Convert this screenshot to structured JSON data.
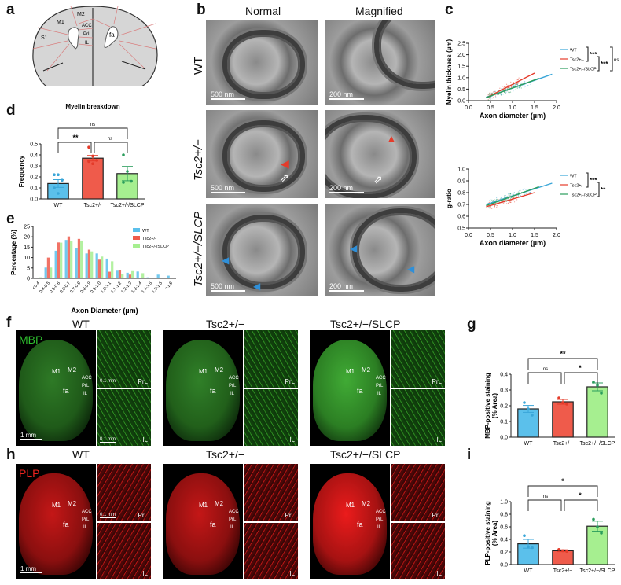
{
  "panel_labels": {
    "a": "a",
    "b": "b",
    "c": "c",
    "d": "d",
    "e": "e",
    "f": "f",
    "g": "g",
    "h": "h",
    "i": "i"
  },
  "panel_a": {
    "regions": [
      "M1",
      "M2",
      "ACC",
      "PrL",
      "IL",
      "S1",
      "fa"
    ]
  },
  "panel_b": {
    "columns": [
      "Normal",
      "Magnified"
    ],
    "rows": [
      "WT",
      "Tsc2+/−",
      "Tsc2+/−/SLCP"
    ],
    "scale_bars": [
      [
        "500 nm",
        "200 nm"
      ],
      [
        "500 nm",
        "200 nm"
      ],
      [
        "500 nm",
        "200 nm"
      ]
    ],
    "arrow_colors": {
      "red": "#e53b2a",
      "blue": "#2f8fd8"
    }
  },
  "groups": [
    "WT",
    "Tsc2+/−",
    "Tsc2+/−/SLCP"
  ],
  "colors": {
    "wt": "#5bc0eb",
    "tsc2": "#ef5b4b",
    "slcp": "#a6ef90",
    "wt_line": "#3aa6d8",
    "tsc2_line": "#e53b2a",
    "slcp_line": "#2a9d5c"
  },
  "panel_f": {
    "stain": "MBP",
    "stain_color": "#2fbf2f",
    "brain_scale": "1 mm",
    "inset_scale": "0.1 mm",
    "inset_labels": [
      "PrL",
      "IL"
    ],
    "regions": [
      "M1",
      "M2",
      "ACC",
      "PrL",
      "IL",
      "fa"
    ]
  },
  "panel_h": {
    "stain": "PLP",
    "stain_color": "#e8231e",
    "brain_scale": "1 mm",
    "inset_scale": "0.1 mm",
    "inset_labels": [
      "PrL",
      "IL"
    ],
    "regions": [
      "M1",
      "M2",
      "ACC",
      "PrL",
      "IL",
      "fa"
    ]
  },
  "chart_data": [
    {
      "id": "c1",
      "type": "line",
      "xlabel": "Axon diameter (µm)",
      "ylabel": "Myelin thickness (µm)",
      "xlim": [
        0,
        2
      ],
      "ylim": [
        0,
        2.5
      ],
      "xticks": [
        "0.0",
        "0.5",
        "1.0",
        "1.5",
        "2.0"
      ],
      "yticks": [
        "0.0",
        "0.5",
        "1.0",
        "1.5",
        "2.0",
        "2.5"
      ],
      "series": [
        {
          "name": "WT",
          "x": [
            0.4,
            1.9
          ],
          "y": [
            0.15,
            1.15
          ]
        },
        {
          "name": "Tsc2+/-",
          "x": [
            0.4,
            1.5
          ],
          "y": [
            0.12,
            1.2
          ]
        },
        {
          "name": "Tsc2+/-/SLCP",
          "x": [
            0.4,
            1.6
          ],
          "y": [
            0.13,
            0.97
          ]
        }
      ],
      "comparisons": [
        {
          "from": 0,
          "to": 1,
          "label": "***"
        },
        {
          "from": 1,
          "to": 2,
          "label": "***"
        },
        {
          "from": 0,
          "to": 2,
          "label": "ns"
        }
      ]
    },
    {
      "id": "c2",
      "type": "line",
      "xlabel": "Axon diameter (µm)",
      "ylabel": "g-ratio",
      "xlim": [
        0,
        2
      ],
      "ylim": [
        0.5,
        1.0
      ],
      "xticks": [
        "0.0",
        "0.5",
        "1.0",
        "1.5",
        "2.0"
      ],
      "yticks": [
        "0.5",
        "0.6",
        "0.7",
        "0.8",
        "0.9",
        "1.0"
      ],
      "series": [
        {
          "name": "WT",
          "x": [
            0.4,
            1.9
          ],
          "y": [
            0.7,
            0.88
          ]
        },
        {
          "name": "Tsc2+/-",
          "x": [
            0.4,
            1.5
          ],
          "y": [
            0.68,
            0.8
          ]
        },
        {
          "name": "Tsc2+/-/SLCP",
          "x": [
            0.4,
            1.6
          ],
          "y": [
            0.69,
            0.85
          ]
        }
      ],
      "comparisons": [
        {
          "from": 0,
          "to": 1,
          "label": "***"
        },
        {
          "from": 1,
          "to": 2,
          "label": "**"
        }
      ]
    },
    {
      "id": "d",
      "type": "bar",
      "title": "Myelin breakdown",
      "ylabel": "Frequency",
      "ylim": [
        0,
        0.5
      ],
      "yticks": [
        "0.0",
        "0.1",
        "0.2",
        "0.3",
        "0.4",
        "0.5"
      ],
      "categories": [
        "WT",
        "Tsc2+/-",
        "Tsc2+/-/SLCP"
      ],
      "values": [
        0.14,
        0.37,
        0.23
      ],
      "errors": [
        0.035,
        0.025,
        0.065
      ],
      "points": [
        [
          0.22,
          0.22,
          0.17,
          0.1,
          0.05
        ],
        [
          0.47,
          0.39,
          0.35,
          0.34,
          0.32
        ],
        [
          0.4,
          0.25,
          0.16,
          0.15
        ]
      ],
      "comparisons": [
        {
          "from": 0,
          "to": 1,
          "label": "**",
          "level": 1
        },
        {
          "from": 1,
          "to": 2,
          "label": "ns",
          "level": 1
        },
        {
          "from": 0,
          "to": 2,
          "label": "ns",
          "level": 2
        }
      ]
    },
    {
      "id": "e",
      "type": "bar",
      "xlabel": "Axon Diameter (µm)",
      "ylabel": "Percentage (%)",
      "ylim": [
        0,
        25
      ],
      "yticks": [
        "0",
        "5",
        "10",
        "15",
        "20",
        "25"
      ],
      "categories": [
        "<0.4",
        "0.4-0.5",
        "0.5-0.6",
        "0.6-0.7",
        "0.7-0.8",
        "0.8-0.9",
        "0.9-1.0",
        "1.0-1.1",
        "1.1-1.2",
        "1.2-1.3",
        "1.3-1.4",
        "1.4-1.5",
        "1.5-1.6",
        ">1.6"
      ],
      "legend": "top-right",
      "series": [
        {
          "name": "WT",
          "values": [
            0,
            5.2,
            13.3,
            18.5,
            14.5,
            12,
            12,
            9.5,
            3.7,
            2.7,
            3.3,
            0.5,
            1.8,
            1.3
          ]
        },
        {
          "name": "Tsc2+/-",
          "values": [
            0,
            10,
            17.3,
            20.2,
            19,
            13.8,
            9,
            3.2,
            4,
            1.8,
            0,
            0,
            0,
            0
          ]
        },
        {
          "name": "Tsc2+/-/SLCP",
          "values": [
            0.5,
            5.2,
            17.2,
            17.8,
            18.2,
            13,
            10.5,
            8.2,
            2.2,
            3.5,
            2.5,
            0,
            0,
            0.3
          ]
        }
      ]
    },
    {
      "id": "g",
      "type": "bar",
      "ylabel": "MBP-positive staining\n(% Area)",
      "ylim": [
        0,
        0.4
      ],
      "yticks": [
        "0.0",
        "0.1",
        "0.2",
        "0.3",
        "0.4"
      ],
      "categories": [
        "WT",
        "Tsc2+/−",
        "Tsc2+/−/SLCP"
      ],
      "values": [
        0.18,
        0.225,
        0.32
      ],
      "errors": [
        0.022,
        0.015,
        0.025
      ],
      "points": [
        [
          0.22,
          0.18,
          0.14
        ],
        [
          0.25,
          0.22,
          0.21
        ],
        [
          0.35,
          0.33,
          0.28
        ]
      ],
      "comparisons": [
        {
          "from": 0,
          "to": 1,
          "label": "ns",
          "level": 1
        },
        {
          "from": 1,
          "to": 2,
          "label": "*",
          "level": 1
        },
        {
          "from": 0,
          "to": 2,
          "label": "**",
          "level": 2
        }
      ]
    },
    {
      "id": "i",
      "type": "bar",
      "ylabel": "PLP-positive staining\n(% Area)",
      "ylim": [
        0,
        1.0
      ],
      "yticks": [
        "0.0",
        "0.2",
        "0.4",
        "0.6",
        "0.8",
        "1.0"
      ],
      "categories": [
        "WT",
        "Tsc2+/−",
        "Tsc2+/−/SLCP"
      ],
      "values": [
        0.33,
        0.22,
        0.61
      ],
      "errors": [
        0.07,
        0.015,
        0.08
      ],
      "points": [
        [
          0.46,
          0.28,
          0.27
        ],
        [
          0.24,
          0.22,
          0.21
        ],
        [
          0.72,
          0.6,
          0.5
        ]
      ],
      "comparisons": [
        {
          "from": 0,
          "to": 1,
          "label": "ns",
          "level": 1
        },
        {
          "from": 1,
          "to": 2,
          "label": "*",
          "level": 1
        },
        {
          "from": 0,
          "to": 2,
          "label": "*",
          "level": 2
        }
      ]
    }
  ]
}
